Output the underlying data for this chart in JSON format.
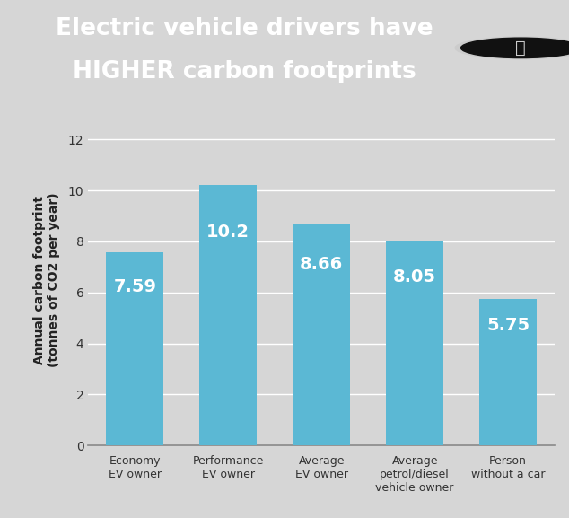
{
  "categories": [
    "Economy\nEV owner",
    "Performance\nEV owner",
    "Average\nEV owner",
    "Average\npetrol/diesel\nvehicle owner",
    "Person\nwithout a car"
  ],
  "values": [
    7.59,
    10.2,
    8.66,
    8.05,
    5.75
  ],
  "bar_color": "#5BB8D4",
  "title_line1": "Electric vehicle drivers have",
  "title_line2": "HIGHER carbon footprints",
  "ylabel_line1": "Annual carbon footprint",
  "ylabel_line2": "(tonnes of CO2 per year)",
  "ylim": [
    0,
    13
  ],
  "yticks": [
    0,
    2,
    4,
    6,
    8,
    10,
    12
  ],
  "title_bg_color": "#111111",
  "title_text_color": "#ffffff",
  "chart_bg_color": "#d6d6d6",
  "bar_label_color": "#ffffff",
  "bar_label_fontsize": 14,
  "title_fontsize": 19,
  "grid_color": "#bbbbbb",
  "spine_color": "#888888",
  "tick_label_color": "#333333",
  "ylabel_color": "#222222",
  "icon_circle_color": "#cccccc",
  "icon_bg_color": "#111111"
}
